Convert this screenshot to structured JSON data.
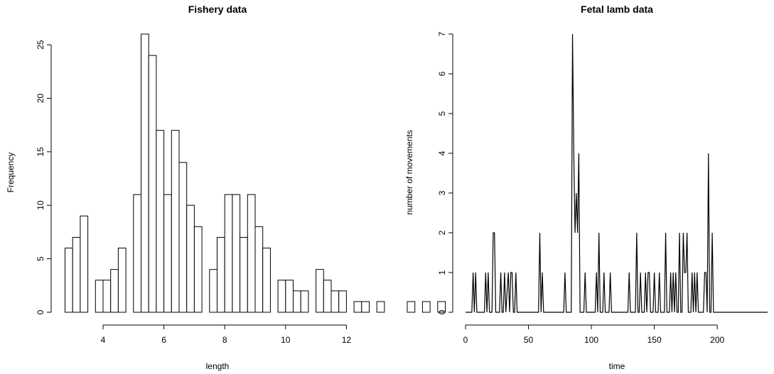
{
  "chart_data": [
    {
      "type": "bar",
      "title": "Fishery data",
      "xlabel": "length",
      "ylabel": "Frequency",
      "bin_width": 0.25,
      "bin_start": 2.75,
      "values": [
        6,
        7,
        9,
        0,
        3,
        3,
        4,
        6,
        0,
        11,
        26,
        24,
        17,
        11,
        17,
        14,
        10,
        8,
        0,
        4,
        7,
        11,
        11,
        7,
        11,
        8,
        6,
        0,
        3,
        3,
        2,
        2,
        0,
        4,
        3,
        2,
        2,
        0,
        1,
        1,
        0,
        1,
        0,
        0,
        0,
        1,
        0,
        1,
        0,
        1
      ],
      "xlim": [
        2.75,
        12.75
      ],
      "ylim": [
        0,
        26
      ],
      "xticks": [
        4,
        6,
        8,
        10,
        12
      ],
      "yticks": [
        0,
        5,
        10,
        15,
        20,
        25
      ],
      "grid": false
    },
    {
      "type": "line",
      "title": "Fetal lamb data",
      "xlabel": "time",
      "ylabel": "number of movements",
      "points": [
        [
          0,
          0
        ],
        [
          5,
          0
        ],
        [
          6,
          1
        ],
        [
          7,
          0
        ],
        [
          8,
          1
        ],
        [
          9,
          0
        ],
        [
          15,
          0
        ],
        [
          16,
          1
        ],
        [
          17,
          0
        ],
        [
          18,
          1
        ],
        [
          19,
          0
        ],
        [
          21,
          0
        ],
        [
          22,
          2
        ],
        [
          23,
          2
        ],
        [
          24,
          0
        ],
        [
          27,
          0
        ],
        [
          28,
          1
        ],
        [
          29,
          0
        ],
        [
          30,
          0
        ],
        [
          31,
          1
        ],
        [
          32,
          0
        ],
        [
          34,
          1
        ],
        [
          35,
          0
        ],
        [
          36,
          1
        ],
        [
          37,
          1
        ],
        [
          38,
          0
        ],
        [
          39,
          0
        ],
        [
          40,
          1
        ],
        [
          41,
          0
        ],
        [
          58,
          0
        ],
        [
          59,
          2
        ],
        [
          60,
          0
        ],
        [
          61,
          1
        ],
        [
          62,
          0
        ],
        [
          78,
          0
        ],
        [
          79,
          1
        ],
        [
          80,
          0
        ],
        [
          84,
          0
        ],
        [
          85,
          7
        ],
        [
          86,
          4
        ],
        [
          87,
          2
        ],
        [
          88,
          3
        ],
        [
          89,
          2
        ],
        [
          90,
          4
        ],
        [
          91,
          0
        ],
        [
          94,
          0
        ],
        [
          95,
          1
        ],
        [
          96,
          0
        ],
        [
          103,
          0
        ],
        [
          104,
          1
        ],
        [
          105,
          0
        ],
        [
          106,
          2
        ],
        [
          107,
          0
        ],
        [
          109,
          0
        ],
        [
          110,
          1
        ],
        [
          111,
          0
        ],
        [
          114,
          0
        ],
        [
          115,
          1
        ],
        [
          116,
          0
        ],
        [
          129,
          0
        ],
        [
          130,
          1
        ],
        [
          131,
          0
        ],
        [
          135,
          0
        ],
        [
          136,
          2
        ],
        [
          137,
          0
        ],
        [
          138,
          0
        ],
        [
          139,
          1
        ],
        [
          140,
          0
        ],
        [
          142,
          0
        ],
        [
          143,
          1
        ],
        [
          144,
          0
        ],
        [
          145,
          1
        ],
        [
          146,
          1
        ],
        [
          147,
          0
        ],
        [
          149,
          0
        ],
        [
          150,
          1
        ],
        [
          151,
          0
        ],
        [
          153,
          0
        ],
        [
          154,
          1
        ],
        [
          155,
          0
        ],
        [
          158,
          0
        ],
        [
          159,
          2
        ],
        [
          160,
          0
        ],
        [
          162,
          0
        ],
        [
          163,
          1
        ],
        [
          164,
          0
        ],
        [
          165,
          1
        ],
        [
          166,
          0
        ],
        [
          167,
          1
        ],
        [
          168,
          0
        ],
        [
          169,
          0
        ],
        [
          170,
          2
        ],
        [
          171,
          0
        ],
        [
          172,
          0
        ],
        [
          173,
          2
        ],
        [
          174,
          1
        ],
        [
          175,
          1
        ],
        [
          176,
          2
        ],
        [
          177,
          0
        ],
        [
          179,
          0
        ],
        [
          180,
          1
        ],
        [
          181,
          0
        ],
        [
          182,
          1
        ],
        [
          183,
          0
        ],
        [
          184,
          1
        ],
        [
          185,
          0
        ],
        [
          189,
          0
        ],
        [
          190,
          1
        ],
        [
          191,
          1
        ],
        [
          192,
          0
        ],
        [
          193,
          4
        ],
        [
          194,
          0
        ],
        [
          195,
          0
        ],
        [
          196,
          2
        ],
        [
          197,
          0
        ],
        [
          240,
          0
        ]
      ],
      "xlim": [
        0,
        240
      ],
      "ylim": [
        0,
        7
      ],
      "xticks": [
        0,
        50,
        100,
        150,
        200
      ],
      "yticks": [
        0,
        1,
        2,
        3,
        4,
        5,
        6,
        7
      ],
      "grid": false
    }
  ]
}
